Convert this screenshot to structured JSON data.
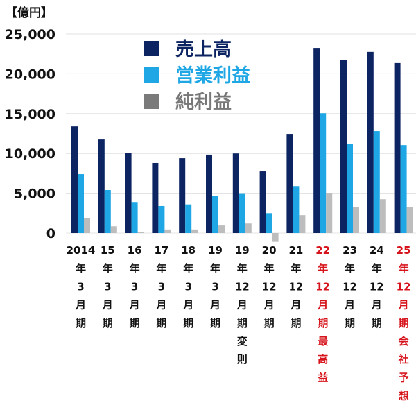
{
  "chart_data": {
    "type": "bar",
    "unit_label": "【億円】",
    "ylim": [
      -1500,
      25000
    ],
    "yticks": [
      0,
      5000,
      10000,
      15000,
      20000,
      25000
    ],
    "ytick_labels": [
      "0",
      "5,000",
      "10,000",
      "15,000",
      "20,000",
      "25,000"
    ],
    "grid": true,
    "legend_position": "top-center",
    "categories": [
      {
        "lines": [
          "2014",
          "年",
          "3",
          "月",
          "期"
        ],
        "highlight": false
      },
      {
        "lines": [
          "15",
          "年",
          "3",
          "月",
          "期"
        ],
        "highlight": false
      },
      {
        "lines": [
          "16",
          "年",
          "3",
          "月",
          "期"
        ],
        "highlight": false
      },
      {
        "lines": [
          "17",
          "年",
          "3",
          "月",
          "期"
        ],
        "highlight": false
      },
      {
        "lines": [
          "18",
          "年",
          "3",
          "月",
          "期"
        ],
        "highlight": false
      },
      {
        "lines": [
          "19",
          "年",
          "3",
          "月",
          "期"
        ],
        "highlight": false
      },
      {
        "lines": [
          "19",
          "年",
          "12",
          "月",
          "期",
          "変",
          "則"
        ],
        "highlight": false
      },
      {
        "lines": [
          "20",
          "年",
          "12",
          "月",
          "期"
        ],
        "highlight": false
      },
      {
        "lines": [
          "21",
          "年",
          "12",
          "月",
          "期"
        ],
        "highlight": false
      },
      {
        "lines": [
          "22",
          "年",
          "12",
          "月",
          "期",
          "最",
          "高",
          "益"
        ],
        "highlight": true
      },
      {
        "lines": [
          "23",
          "年",
          "12",
          "月",
          "期"
        ],
        "highlight": false
      },
      {
        "lines": [
          "24",
          "年",
          "12",
          "月",
          "期"
        ],
        "highlight": false
      },
      {
        "lines": [
          "25",
          "年",
          "12",
          "月",
          "期",
          "会",
          "社",
          "予",
          "想"
        ],
        "highlight": true
      }
    ],
    "series": [
      {
        "name": "売上高",
        "color": "#0d2463",
        "values": [
          13400,
          11750,
          10100,
          8800,
          9400,
          9850,
          10000,
          7750,
          12450,
          23250,
          21750,
          22750,
          21350
        ]
      },
      {
        "name": "営業利益",
        "color": "#1ea7e4",
        "values": [
          7400,
          5400,
          3900,
          3400,
          3600,
          4700,
          5000,
          2500,
          5900,
          15050,
          11150,
          12800,
          11050
        ]
      },
      {
        "name": "純利益",
        "color": "#bdbdbd",
        "values": [
          1900,
          850,
          150,
          450,
          450,
          950,
          1200,
          -1100,
          2250,
          5050,
          3300,
          4250,
          3300
        ]
      }
    ],
    "legend_text_colors": [
      "#0d2463",
      "#1ea7e4",
      "#777777"
    ],
    "highlight_color": "#d7141c",
    "label_color": "#111111"
  }
}
